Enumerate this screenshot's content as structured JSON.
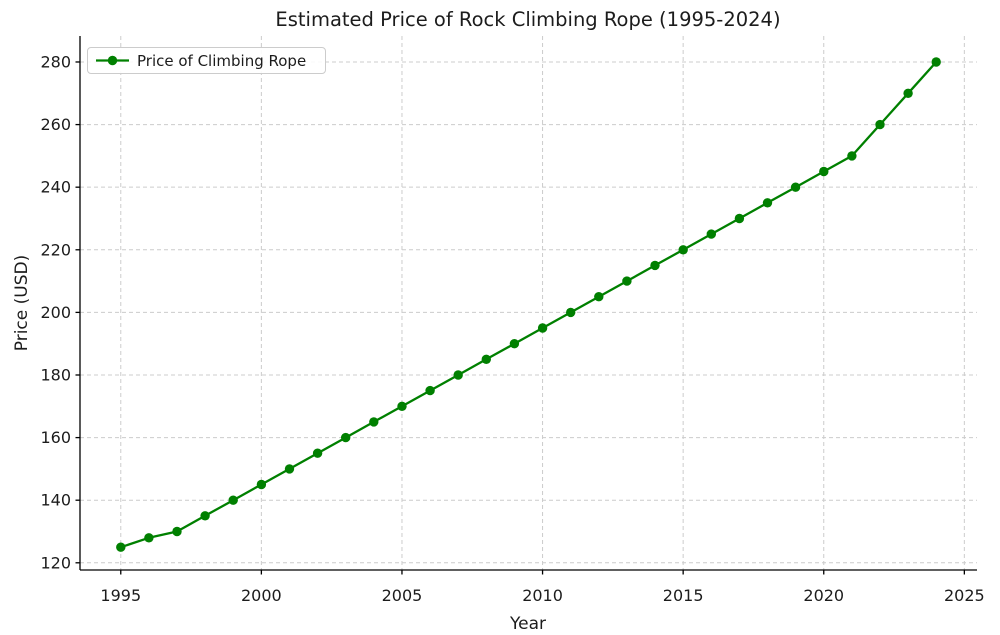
{
  "figure": {
    "background": "#ffffff",
    "spine_color": "#000000",
    "text_color": "#1c1c1c"
  },
  "chart_data": {
    "type": "line",
    "title": "Estimated Price of Rock Climbing Rope (1995-2024)",
    "xlabel": "Year",
    "ylabel": "Price (USD)",
    "x": [
      1995,
      1996,
      1997,
      1998,
      1999,
      2000,
      2001,
      2002,
      2003,
      2004,
      2005,
      2006,
      2007,
      2008,
      2009,
      2010,
      2011,
      2012,
      2013,
      2014,
      2015,
      2016,
      2017,
      2018,
      2019,
      2020,
      2021,
      2022,
      2023,
      2024
    ],
    "series": [
      {
        "name": "Price of Climbing Rope",
        "color": "#008000",
        "marker": "circle",
        "values": [
          125,
          128,
          130,
          135,
          140,
          145,
          150,
          155,
          160,
          165,
          170,
          175,
          180,
          185,
          190,
          195,
          200,
          205,
          210,
          215,
          220,
          225,
          230,
          235,
          240,
          245,
          250,
          260,
          270,
          280
        ]
      }
    ],
    "xlim": [
      1993.55,
      2025.45
    ],
    "ylim": [
      117.7,
      288.3
    ],
    "xticks": [
      1995,
      2000,
      2005,
      2010,
      2015,
      2020,
      2025
    ],
    "yticks": [
      120,
      140,
      160,
      180,
      200,
      220,
      240,
      260,
      280
    ],
    "grid": true,
    "grid_style": "dashed",
    "grid_color": "#cccccc",
    "legend": [
      "Price of Climbing Rope"
    ],
    "legend_position": "upper-left",
    "legend_border_color": "#cccccc",
    "legend_background": "#ffffff"
  }
}
